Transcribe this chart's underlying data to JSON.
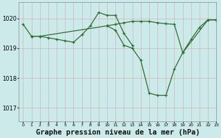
{
  "bg_color": "#cceaea",
  "grid_color": "#aacfcf",
  "line_color": "#2d6a2d",
  "marker_color": "#2d6a2d",
  "title": "Graphe pression niveau de la mer (hPa)",
  "title_fontsize": 7.5,
  "ylabel_ticks": [
    1017,
    1018,
    1019,
    1020
  ],
  "xlim": [
    -0.5,
    23
  ],
  "ylim": [
    1016.55,
    1020.55
  ],
  "series": [
    {
      "x": [
        0,
        1,
        2,
        3,
        4,
        5,
        6,
        7,
        8,
        9,
        10,
        11,
        12,
        13
      ],
      "y": [
        1019.8,
        1019.4,
        1019.4,
        1019.35,
        1019.3,
        1019.25,
        1019.2,
        1019.45,
        1019.75,
        1020.2,
        1020.1,
        1020.1,
        1019.5,
        1019.1
      ]
    },
    {
      "x": [
        1,
        2,
        10,
        11,
        12,
        13,
        14,
        15,
        16,
        17,
        18,
        19,
        22,
        23
      ],
      "y": [
        1019.4,
        1019.4,
        1019.75,
        1019.8,
        1019.85,
        1019.9,
        1019.9,
        1019.9,
        1019.85,
        1019.82,
        1019.8,
        1018.85,
        1019.95,
        1019.95
      ]
    },
    {
      "x": [
        10,
        11,
        12,
        13,
        14,
        15,
        16,
        17,
        18,
        19,
        20,
        21,
        22,
        23
      ],
      "y": [
        1019.75,
        1019.6,
        1019.1,
        1019.0,
        1018.6,
        1017.5,
        1017.42,
        1017.42,
        1018.3,
        1018.85,
        1019.3,
        1019.7,
        1019.95,
        1019.95
      ]
    }
  ]
}
